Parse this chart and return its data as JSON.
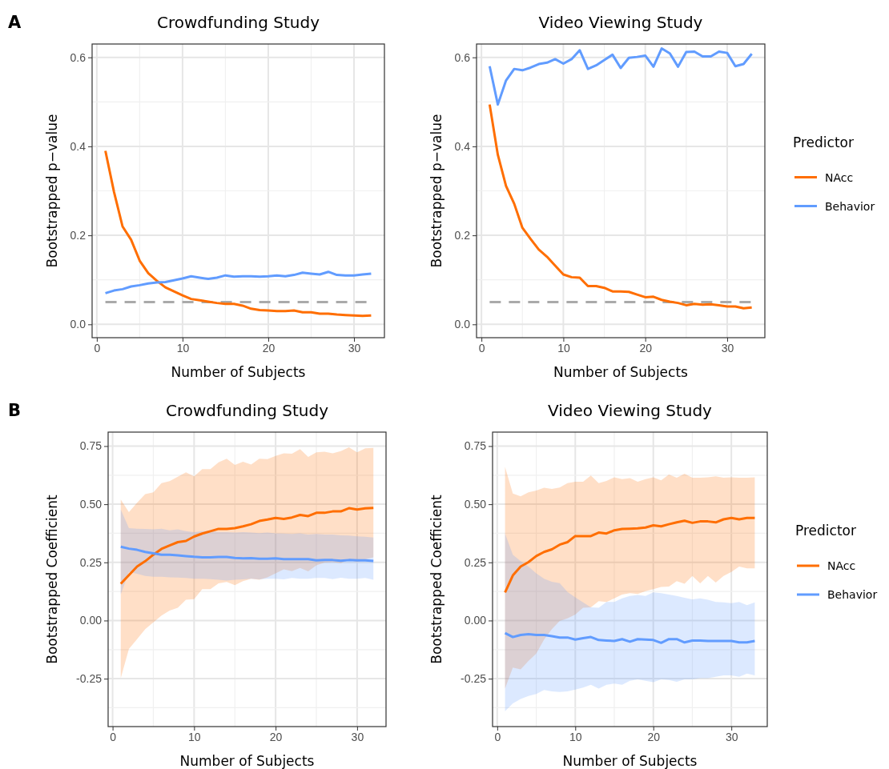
{
  "chart_data": [
    {
      "type": "line",
      "title": "Crowdfunding Study",
      "xlabel": "Number of Subjects",
      "ylabel": "Bootstrapped p−value",
      "annotations": [
        "A"
      ],
      "grid": true,
      "x": [
        1,
        2,
        3,
        4,
        5,
        6,
        7,
        8,
        9,
        10,
        11,
        12,
        13,
        14,
        15,
        16,
        17,
        18,
        19,
        20,
        21,
        22,
        23,
        24,
        25,
        26,
        27,
        28,
        29,
        30,
        31,
        32
      ],
      "xlim": [
        -0.55,
        33.55
      ],
      "xticks": [
        0,
        10,
        20,
        30
      ],
      "ylim": [
        -0.03,
        0.63
      ],
      "yticks": [
        {
          "value": 0,
          "label": "0.0"
        },
        {
          "value": 0.2,
          "label": "0.2"
        },
        {
          "value": 0.4,
          "label": "0.4"
        },
        {
          "value": 0.6,
          "label": "0.6"
        }
      ],
      "ref_lines": [
        {
          "axis": "y",
          "value": 0.05,
          "label": null,
          "color": "#aaaaaa",
          "line_style": "dashed"
        }
      ],
      "series": [
        {
          "color": "#ff6e00",
          "values": [
            0.39,
            0.298,
            0.22,
            0.19,
            0.143,
            0.115,
            0.098,
            0.083,
            0.074,
            0.065,
            0.057,
            0.054,
            0.051,
            0.048,
            0.046,
            0.046,
            0.042,
            0.035,
            0.032,
            0.031,
            0.03,
            0.03,
            0.031,
            0.027,
            0.027,
            0.024,
            0.024,
            0.022,
            0.021,
            0.02,
            0.019,
            0.02
          ]
        },
        {
          "color": "#619cff",
          "values": [
            0.07,
            0.076,
            0.079,
            0.085,
            0.088,
            0.092,
            0.094,
            0.095,
            0.099,
            0.103,
            0.108,
            0.105,
            0.102,
            0.105,
            0.11,
            0.107,
            0.108,
            0.108,
            0.107,
            0.108,
            0.11,
            0.108,
            0.111,
            0.116,
            0.114,
            0.112,
            0.118,
            0.111,
            0.11,
            0.11,
            0.112,
            0.114
          ]
        }
      ]
    },
    {
      "type": "line",
      "title": "Video Viewing Study",
      "xlabel": "Number of Subjects",
      "ylabel": "Bootstrapped p−value",
      "legend_title": "Predictor",
      "legend": "right",
      "grid": true,
      "x": [
        1,
        2,
        3,
        4,
        5,
        6,
        7,
        8,
        9,
        10,
        11,
        12,
        13,
        14,
        15,
        16,
        17,
        18,
        19,
        20,
        21,
        22,
        23,
        24,
        25,
        26,
        27,
        28,
        29,
        30,
        31,
        32,
        33
      ],
      "xlim": [
        -0.6,
        34.6
      ],
      "xticks": [
        0,
        10,
        20,
        30
      ],
      "ylim": [
        -0.03,
        0.63
      ],
      "yticks": [
        {
          "value": 0,
          "label": "0.0"
        },
        {
          "value": 0.2,
          "label": "0.2"
        },
        {
          "value": 0.4,
          "label": "0.4"
        },
        {
          "value": 0.6,
          "label": "0.6"
        }
      ],
      "ref_lines": [
        {
          "axis": "y",
          "value": 0.05,
          "label": null,
          "color": "#aaaaaa",
          "line_style": "dashed"
        }
      ],
      "series": [
        {
          "name": "NAcc",
          "color": "#ff6e00",
          "values": [
            0.494,
            0.381,
            0.311,
            0.271,
            0.217,
            0.192,
            0.168,
            0.152,
            0.132,
            0.112,
            0.106,
            0.105,
            0.086,
            0.086,
            0.082,
            0.074,
            0.074,
            0.073,
            0.067,
            0.061,
            0.062,
            0.055,
            0.051,
            0.048,
            0.043,
            0.046,
            0.044,
            0.045,
            0.043,
            0.04,
            0.04,
            0.036,
            0.038
          ]
        },
        {
          "name": "Behavior",
          "color": "#619cff",
          "values": [
            0.58,
            0.494,
            0.548,
            0.574,
            0.571,
            0.577,
            0.585,
            0.588,
            0.596,
            0.586,
            0.596,
            0.616,
            0.574,
            0.582,
            0.594,
            0.606,
            0.576,
            0.599,
            0.601,
            0.604,
            0.579,
            0.62,
            0.609,
            0.579,
            0.612,
            0.613,
            0.602,
            0.602,
            0.613,
            0.61,
            0.58,
            0.585,
            0.608
          ]
        }
      ]
    },
    {
      "type": "line",
      "title": "Crowdfunding Study",
      "xlabel": "Number of Subjects",
      "ylabel": "Bootstrapped Coefficient",
      "annotations": [
        "B"
      ],
      "grid": true,
      "x": [
        1,
        2,
        3,
        4,
        5,
        6,
        7,
        8,
        9,
        10,
        11,
        12,
        13,
        14,
        15,
        16,
        17,
        18,
        19,
        20,
        21,
        22,
        23,
        24,
        25,
        26,
        27,
        28,
        29,
        30,
        31,
        32
      ],
      "xlim": [
        -0.55,
        33.55
      ],
      "xticks": [
        0,
        10,
        20,
        30
      ],
      "ylim": [
        -0.456,
        0.81
      ],
      "yticks": [
        {
          "value": -0.25,
          "label": "-0.25"
        },
        {
          "value": 0,
          "label": "0.00"
        },
        {
          "value": 0.25,
          "label": "0.25"
        },
        {
          "value": 0.5,
          "label": "0.50"
        },
        {
          "value": 0.75,
          "label": "0.75"
        }
      ],
      "series": [
        {
          "color": "#ff6e00",
          "values": [
            0.158,
            0.195,
            0.232,
            0.255,
            0.283,
            0.308,
            0.323,
            0.337,
            0.342,
            0.361,
            0.374,
            0.384,
            0.394,
            0.394,
            0.397,
            0.405,
            0.414,
            0.428,
            0.434,
            0.441,
            0.437,
            0.443,
            0.454,
            0.449,
            0.463,
            0.463,
            0.469,
            0.469,
            0.483,
            0.477,
            0.482,
            0.484
          ],
          "upper": [
            0.52,
            0.466,
            0.506,
            0.543,
            0.551,
            0.591,
            0.599,
            0.618,
            0.637,
            0.62,
            0.651,
            0.651,
            0.68,
            0.696,
            0.669,
            0.683,
            0.671,
            0.696,
            0.694,
            0.708,
            0.719,
            0.717,
            0.737,
            0.703,
            0.723,
            0.726,
            0.719,
            0.728,
            0.745,
            0.723,
            0.74,
            0.742
          ],
          "lower": [
            -0.248,
            -0.122,
            -0.08,
            -0.037,
            -0.008,
            0.021,
            0.043,
            0.055,
            0.089,
            0.092,
            0.135,
            0.135,
            0.16,
            0.166,
            0.152,
            0.169,
            0.18,
            0.175,
            0.186,
            0.203,
            0.22,
            0.212,
            0.226,
            0.211,
            0.237,
            0.249,
            0.251,
            0.247,
            0.26,
            0.251,
            0.263,
            0.272
          ]
        },
        {
          "color": "#619cff",
          "values": [
            0.317,
            0.309,
            0.304,
            0.295,
            0.289,
            0.283,
            0.283,
            0.28,
            0.277,
            0.274,
            0.272,
            0.272,
            0.273,
            0.273,
            0.269,
            0.267,
            0.268,
            0.266,
            0.266,
            0.267,
            0.264,
            0.264,
            0.264,
            0.264,
            0.259,
            0.26,
            0.26,
            0.257,
            0.26,
            0.259,
            0.259,
            0.256
          ],
          "upper": [
            0.477,
            0.397,
            0.395,
            0.394,
            0.392,
            0.395,
            0.388,
            0.392,
            0.384,
            0.38,
            0.384,
            0.386,
            0.38,
            0.38,
            0.378,
            0.38,
            0.378,
            0.376,
            0.378,
            0.375,
            0.374,
            0.372,
            0.375,
            0.37,
            0.372,
            0.37,
            0.37,
            0.366,
            0.365,
            0.362,
            0.36,
            0.357
          ],
          "lower": [
            0.112,
            0.209,
            0.201,
            0.192,
            0.188,
            0.188,
            0.186,
            0.185,
            0.183,
            0.18,
            0.18,
            0.178,
            0.175,
            0.172,
            0.175,
            0.177,
            0.18,
            0.177,
            0.18,
            0.18,
            0.177,
            0.183,
            0.18,
            0.18,
            0.183,
            0.183,
            0.178,
            0.184,
            0.18,
            0.18,
            0.183,
            0.175
          ]
        }
      ]
    },
    {
      "type": "line",
      "title": "Video Viewing Study",
      "xlabel": "Number of Subjects",
      "ylabel": "Bootstrapped Coefficient",
      "legend_title": "Predictor",
      "legend": "right",
      "grid": true,
      "x": [
        1,
        2,
        3,
        4,
        5,
        6,
        7,
        8,
        9,
        10,
        11,
        12,
        13,
        14,
        15,
        16,
        17,
        18,
        19,
        20,
        21,
        22,
        23,
        24,
        25,
        26,
        27,
        28,
        29,
        30,
        31,
        32,
        33
      ],
      "xlim": [
        -0.6,
        34.6
      ],
      "xticks": [
        0,
        10,
        20,
        30
      ],
      "ylim": [
        -0.456,
        0.81
      ],
      "yticks": [
        {
          "value": -0.25,
          "label": "-0.25"
        },
        {
          "value": 0,
          "label": "0.00"
        },
        {
          "value": 0.25,
          "label": "0.25"
        },
        {
          "value": 0.5,
          "label": "0.50"
        },
        {
          "value": 0.75,
          "label": "0.75"
        }
      ],
      "series": [
        {
          "name": "NAcc",
          "color": "#ff6e00",
          "values": [
            0.121,
            0.194,
            0.232,
            0.251,
            0.277,
            0.295,
            0.306,
            0.326,
            0.337,
            0.363,
            0.363,
            0.363,
            0.378,
            0.374,
            0.388,
            0.394,
            0.395,
            0.396,
            0.4,
            0.409,
            0.405,
            0.414,
            0.422,
            0.429,
            0.42,
            0.426,
            0.426,
            0.422,
            0.435,
            0.441,
            0.435,
            0.441,
            0.441
          ],
          "upper": [
            0.66,
            0.546,
            0.534,
            0.551,
            0.559,
            0.571,
            0.566,
            0.572,
            0.591,
            0.597,
            0.597,
            0.623,
            0.591,
            0.6,
            0.616,
            0.608,
            0.612,
            0.597,
            0.608,
            0.616,
            0.603,
            0.628,
            0.614,
            0.631,
            0.614,
            0.614,
            0.616,
            0.62,
            0.614,
            0.616,
            0.614,
            0.614,
            0.616
          ],
          "lower": [
            -0.293,
            -0.202,
            -0.21,
            -0.174,
            -0.142,
            -0.082,
            -0.037,
            -0.002,
            0.009,
            0.026,
            0.055,
            0.057,
            0.083,
            0.08,
            0.095,
            0.112,
            0.118,
            0.114,
            0.126,
            0.135,
            0.144,
            0.146,
            0.169,
            0.158,
            0.192,
            0.16,
            0.192,
            0.163,
            0.192,
            0.209,
            0.232,
            0.224,
            0.224
          ]
        },
        {
          "name": "Behavior",
          "color": "#619cff",
          "values": [
            -0.054,
            -0.071,
            -0.062,
            -0.059,
            -0.062,
            -0.062,
            -0.067,
            -0.073,
            -0.073,
            -0.082,
            -0.076,
            -0.071,
            -0.084,
            -0.086,
            -0.088,
            -0.08,
            -0.091,
            -0.08,
            -0.082,
            -0.084,
            -0.096,
            -0.08,
            -0.08,
            -0.094,
            -0.086,
            -0.086,
            -0.088,
            -0.088,
            -0.088,
            -0.088,
            -0.094,
            -0.094,
            -0.088
          ],
          "upper": [
            0.374,
            0.283,
            0.255,
            0.232,
            0.203,
            0.18,
            0.167,
            0.161,
            0.123,
            0.1,
            0.078,
            0.057,
            0.055,
            0.08,
            0.08,
            0.095,
            0.106,
            0.11,
            0.106,
            0.121,
            0.118,
            0.112,
            0.106,
            0.098,
            0.091,
            0.095,
            0.089,
            0.08,
            0.078,
            0.075,
            0.08,
            0.066,
            0.078
          ],
          "lower": [
            -0.39,
            -0.356,
            -0.337,
            -0.324,
            -0.316,
            -0.299,
            -0.305,
            -0.307,
            -0.305,
            -0.297,
            -0.288,
            -0.276,
            -0.293,
            -0.276,
            -0.271,
            -0.276,
            -0.259,
            -0.253,
            -0.259,
            -0.265,
            -0.253,
            -0.256,
            -0.263,
            -0.253,
            -0.253,
            -0.248,
            -0.248,
            -0.242,
            -0.236,
            -0.236,
            -0.242,
            -0.228,
            -0.236
          ]
        }
      ]
    }
  ]
}
